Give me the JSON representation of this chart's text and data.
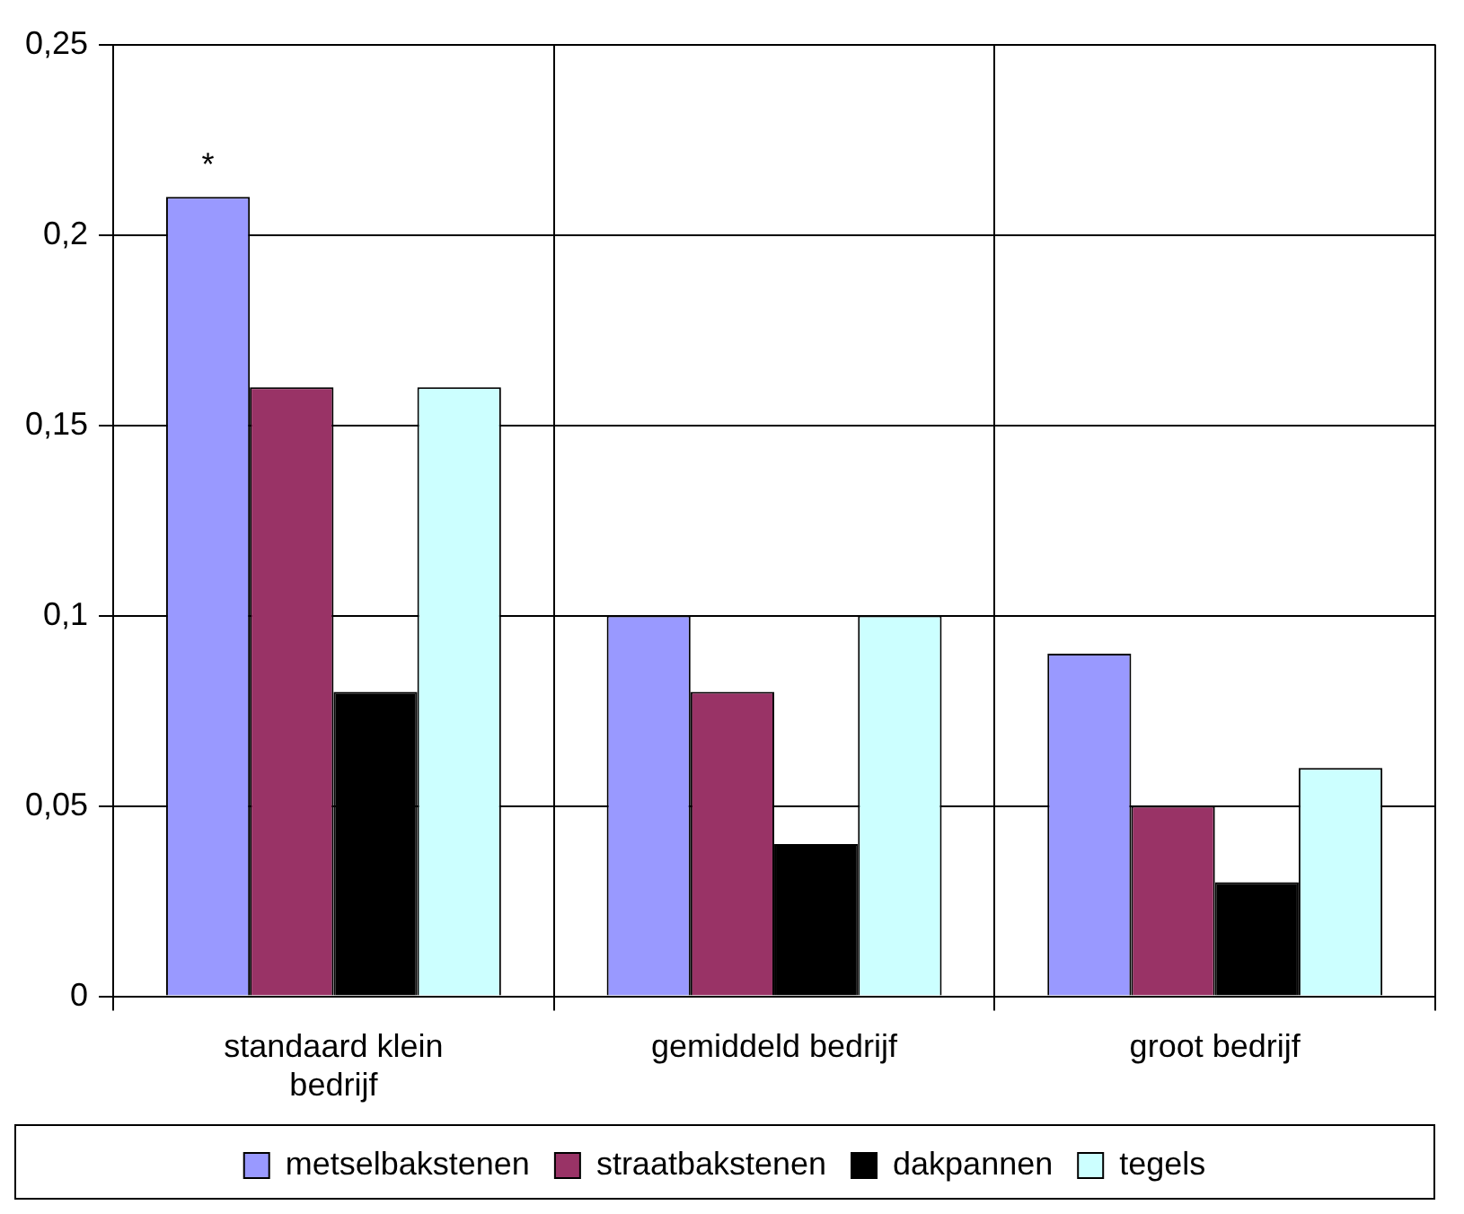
{
  "chart_data": {
    "type": "bar",
    "categories": [
      "standaard klein bedrijf",
      "gemiddeld bedrijf",
      "groot bedrijf"
    ],
    "series": [
      {
        "name": "metselbakstenen",
        "color": "#9999ff",
        "values": [
          0.21,
          0.1,
          0.09
        ]
      },
      {
        "name": "straatbakstenen",
        "color": "#993366",
        "values": [
          0.16,
          0.08,
          0.05
        ]
      },
      {
        "name": "dakpannen",
        "color": "#000000",
        "values": [
          0.08,
          0.04,
          0.03
        ]
      },
      {
        "name": "tegels",
        "color": "#ccffff",
        "values": [
          0.16,
          0.1,
          0.06
        ]
      }
    ],
    "ylim": [
      0,
      0.25
    ],
    "yticks": [
      {
        "value": 0,
        "label": "0"
      },
      {
        "value": 0.05,
        "label": "0,05"
      },
      {
        "value": 0.1,
        "label": "0,1"
      },
      {
        "value": 0.15,
        "label": "0,15"
      },
      {
        "value": 0.2,
        "label": "0,2"
      },
      {
        "value": 0.25,
        "label": "0,25"
      }
    ],
    "grid": true,
    "legend": "bottom",
    "annotations": [
      "*"
    ]
  }
}
